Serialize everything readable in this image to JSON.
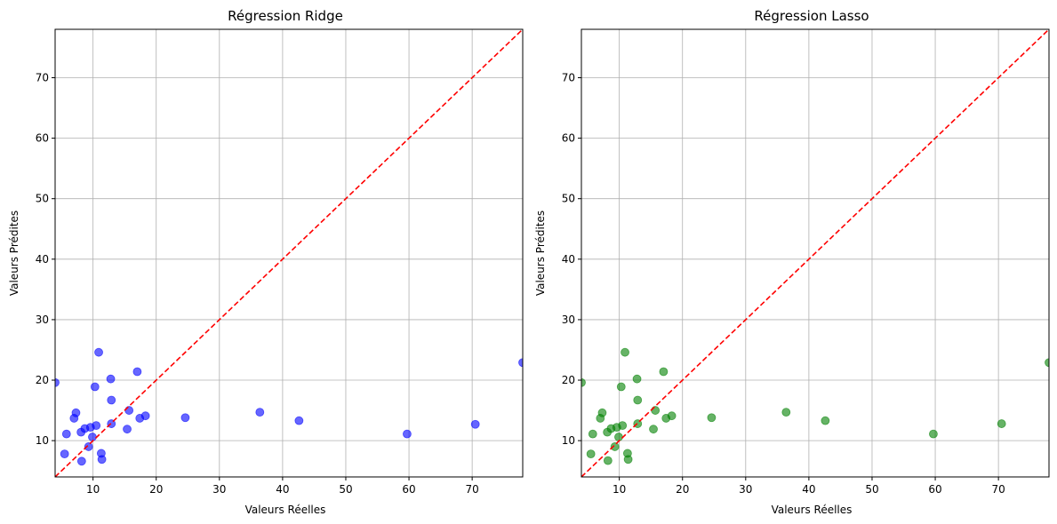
{
  "chart_data": [
    {
      "type": "scatter",
      "title": "Régression Ridge",
      "xlabel": "Valeurs Réelles",
      "ylabel": "Valeurs Prédites",
      "xlim": [
        4,
        78
      ],
      "ylim": [
        4,
        78
      ],
      "xticks": [
        10,
        20,
        30,
        40,
        50,
        60,
        70
      ],
      "yticks": [
        10,
        20,
        30,
        40,
        50,
        60,
        70
      ],
      "grid": true,
      "point_color": "#0000ff",
      "reference_line_color": "#ff0000",
      "reference_line": "y = x",
      "points": [
        {
          "x": 4.0,
          "y": 19.6
        },
        {
          "x": 5.5,
          "y": 7.8
        },
        {
          "x": 5.8,
          "y": 11.1
        },
        {
          "x": 7.0,
          "y": 13.7
        },
        {
          "x": 7.3,
          "y": 14.6
        },
        {
          "x": 8.1,
          "y": 11.4
        },
        {
          "x": 8.2,
          "y": 6.6
        },
        {
          "x": 8.7,
          "y": 12.0
        },
        {
          "x": 9.3,
          "y": 9.0
        },
        {
          "x": 9.6,
          "y": 12.2
        },
        {
          "x": 9.9,
          "y": 10.6
        },
        {
          "x": 10.3,
          "y": 18.9
        },
        {
          "x": 10.5,
          "y": 12.5
        },
        {
          "x": 10.9,
          "y": 24.6
        },
        {
          "x": 11.3,
          "y": 7.9
        },
        {
          "x": 11.4,
          "y": 6.9
        },
        {
          "x": 12.8,
          "y": 20.2
        },
        {
          "x": 12.9,
          "y": 16.7
        },
        {
          "x": 12.9,
          "y": 12.8
        },
        {
          "x": 15.4,
          "y": 11.9
        },
        {
          "x": 15.7,
          "y": 15.0
        },
        {
          "x": 17.0,
          "y": 21.4
        },
        {
          "x": 17.4,
          "y": 13.7
        },
        {
          "x": 18.3,
          "y": 14.1
        },
        {
          "x": 24.6,
          "y": 13.8
        },
        {
          "x": 36.4,
          "y": 14.7
        },
        {
          "x": 42.6,
          "y": 13.3
        },
        {
          "x": 59.7,
          "y": 11.1
        },
        {
          "x": 70.5,
          "y": 12.7
        },
        {
          "x": 78.0,
          "y": 22.9
        }
      ]
    },
    {
      "type": "scatter",
      "title": "Régression Lasso",
      "xlabel": "Valeurs Réelles",
      "ylabel": "Valeurs Prédites",
      "xlim": [
        4,
        78
      ],
      "ylim": [
        4,
        78
      ],
      "xticks": [
        10,
        20,
        30,
        40,
        50,
        60,
        70
      ],
      "yticks": [
        10,
        20,
        30,
        40,
        50,
        60,
        70
      ],
      "grid": true,
      "point_color": "#008000",
      "reference_line_color": "#ff0000",
      "reference_line": "y = x",
      "points": [
        {
          "x": 4.0,
          "y": 19.6
        },
        {
          "x": 5.5,
          "y": 7.8
        },
        {
          "x": 5.8,
          "y": 11.1
        },
        {
          "x": 7.0,
          "y": 13.7
        },
        {
          "x": 7.3,
          "y": 14.6
        },
        {
          "x": 8.1,
          "y": 11.4
        },
        {
          "x": 8.2,
          "y": 6.7
        },
        {
          "x": 8.7,
          "y": 12.0
        },
        {
          "x": 9.3,
          "y": 9.0
        },
        {
          "x": 9.6,
          "y": 12.2
        },
        {
          "x": 9.9,
          "y": 10.6
        },
        {
          "x": 10.3,
          "y": 18.9
        },
        {
          "x": 10.5,
          "y": 12.5
        },
        {
          "x": 10.9,
          "y": 24.6
        },
        {
          "x": 11.3,
          "y": 7.9
        },
        {
          "x": 11.4,
          "y": 6.9
        },
        {
          "x": 12.8,
          "y": 20.2
        },
        {
          "x": 12.9,
          "y": 16.7
        },
        {
          "x": 12.9,
          "y": 12.8
        },
        {
          "x": 15.4,
          "y": 11.9
        },
        {
          "x": 15.7,
          "y": 15.0
        },
        {
          "x": 17.0,
          "y": 21.4
        },
        {
          "x": 17.4,
          "y": 13.7
        },
        {
          "x": 18.3,
          "y": 14.1
        },
        {
          "x": 24.6,
          "y": 13.8
        },
        {
          "x": 36.4,
          "y": 14.7
        },
        {
          "x": 42.6,
          "y": 13.3
        },
        {
          "x": 59.7,
          "y": 11.1
        },
        {
          "x": 70.5,
          "y": 12.8
        },
        {
          "x": 78.0,
          "y": 22.9
        }
      ]
    }
  ]
}
